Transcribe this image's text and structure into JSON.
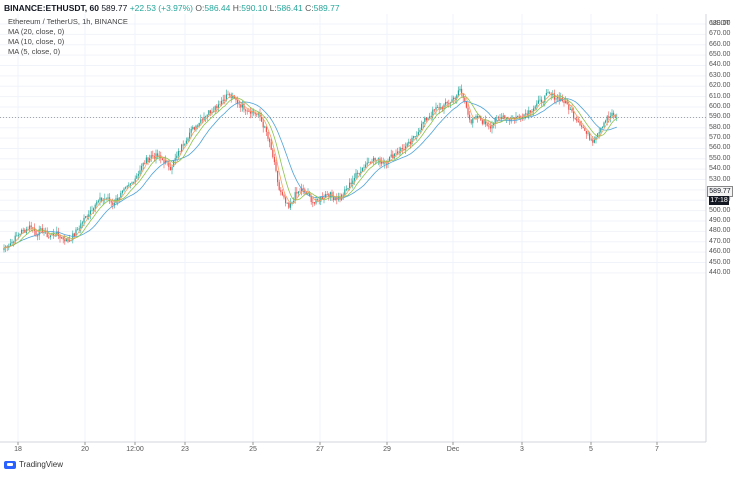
{
  "header": {
    "symbol": "BINANCE:ETHUSDT, 60",
    "last": "589.77",
    "change": "+22.53 (+3.97%)",
    "open_label": "O:",
    "open": "586.44",
    "high_label": "H:",
    "high": "590.10",
    "low_label": "L:",
    "low": "586.41",
    "close_label": "C:",
    "close": "589.77"
  },
  "legend": {
    "title": "Ethereum / TetherUS, 1h, BINANCE",
    "ma20": "MA (20, close, 0)",
    "ma10": "MA (10, close, 0)",
    "ma5": "MA (5, close, 0)"
  },
  "price_axis": {
    "currency": "USDT",
    "labels": [
      "680.00",
      "670.00",
      "660.00",
      "650.00",
      "640.00",
      "630.00",
      "620.00",
      "610.00",
      "600.00",
      "590.00",
      "580.00",
      "570.00",
      "560.00",
      "550.00",
      "540.00",
      "530.00",
      "520.00",
      "510.00",
      "500.00",
      "490.00",
      "480.00",
      "470.00",
      "460.00",
      "450.00",
      "440.00"
    ],
    "current_price": "589.77",
    "countdown": "17:18"
  },
  "time_axis": {
    "labels": [
      "18",
      "20",
      "12:00",
      "23",
      "25",
      "27",
      "29",
      "Dec",
      "3",
      "5",
      "7"
    ]
  },
  "branding": {
    "name": "TradingView"
  },
  "colors": {
    "up": "#26a69a",
    "down": "#ef5350",
    "ma20": "#4fa3d8",
    "ma10": "#8bc34a",
    "ma5": "#f4a261",
    "grid": "#f0f3fa"
  },
  "chart_data": {
    "type": "candlestick",
    "y_range": [
      440,
      690
    ],
    "anchors": [
      [
        0,
        464
      ],
      [
        5,
        470
      ],
      [
        10,
        479
      ],
      [
        14,
        482
      ],
      [
        17,
        486
      ],
      [
        20,
        478
      ],
      [
        24,
        481
      ],
      [
        28,
        475
      ],
      [
        32,
        478
      ],
      [
        36,
        474
      ],
      [
        40,
        471
      ],
      [
        44,
        477
      ],
      [
        48,
        487
      ],
      [
        52,
        496
      ],
      [
        56,
        505
      ],
      [
        60,
        510
      ],
      [
        64,
        512
      ],
      [
        68,
        507
      ],
      [
        72,
        514
      ],
      [
        76,
        520
      ],
      [
        80,
        527
      ],
      [
        84,
        537
      ],
      [
        88,
        547
      ],
      [
        92,
        553
      ],
      [
        96,
        552
      ],
      [
        100,
        548
      ],
      [
        104,
        542
      ],
      [
        108,
        552
      ],
      [
        112,
        565
      ],
      [
        116,
        575
      ],
      [
        120,
        582
      ],
      [
        124,
        590
      ],
      [
        128,
        595
      ],
      [
        132,
        600
      ],
      [
        136,
        606
      ],
      [
        140,
        612
      ],
      [
        144,
        607
      ],
      [
        148,
        602
      ],
      [
        152,
        598
      ],
      [
        156,
        595
      ],
      [
        160,
        590
      ],
      [
        164,
        575
      ],
      [
        168,
        552
      ],
      [
        172,
        520
      ],
      [
        176,
        507
      ],
      [
        178,
        502
      ],
      [
        182,
        515
      ],
      [
        186,
        520
      ],
      [
        190,
        515
      ],
      [
        194,
        507
      ],
      [
        198,
        512
      ],
      [
        202,
        517
      ],
      [
        206,
        513
      ],
      [
        210,
        512
      ],
      [
        214,
        520
      ],
      [
        218,
        530
      ],
      [
        222,
        538
      ],
      [
        226,
        545
      ],
      [
        230,
        550
      ],
      [
        234,
        548
      ],
      [
        238,
        547
      ],
      [
        242,
        552
      ],
      [
        246,
        558
      ],
      [
        250,
        560
      ],
      [
        254,
        565
      ],
      [
        258,
        575
      ],
      [
        262,
        585
      ],
      [
        266,
        592
      ],
      [
        270,
        598
      ],
      [
        274,
        600
      ],
      [
        278,
        604
      ],
      [
        282,
        610
      ],
      [
        285,
        616
      ],
      [
        288,
        605
      ],
      [
        292,
        585
      ],
      [
        296,
        590
      ],
      [
        300,
        585
      ],
      [
        304,
        582
      ],
      [
        308,
        588
      ],
      [
        312,
        592
      ],
      [
        316,
        588
      ],
      [
        320,
        590
      ],
      [
        324,
        592
      ],
      [
        328,
        596
      ],
      [
        332,
        601
      ],
      [
        336,
        606
      ],
      [
        340,
        612
      ],
      [
        344,
        610
      ],
      [
        348,
        608
      ],
      [
        352,
        602
      ],
      [
        356,
        592
      ],
      [
        360,
        585
      ],
      [
        364,
        574
      ],
      [
        368,
        568
      ],
      [
        372,
        578
      ],
      [
        376,
        588
      ],
      [
        380,
        592
      ],
      [
        383,
        589.77
      ]
    ],
    "last_price": 589.77
  }
}
